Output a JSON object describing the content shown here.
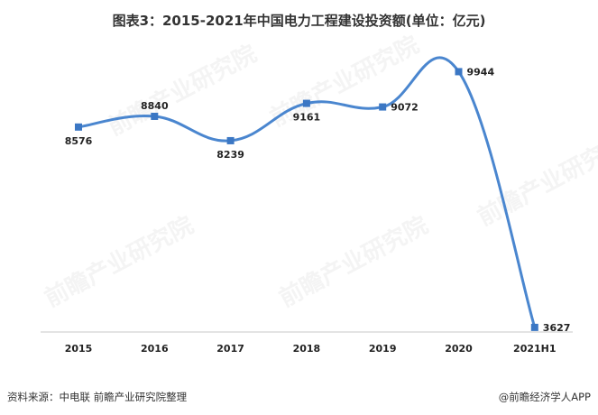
{
  "title": "图表3：2015-2021年中国电力工程建设投资额(单位：亿元)",
  "source": "资料来源：中电联 前瞻产业研究院整理",
  "brand": "@前瞻经济学人APP",
  "watermark": "前瞻产业研究院",
  "chart_data": {
    "type": "line",
    "categories": [
      "2015",
      "2016",
      "2017",
      "2018",
      "2019",
      "2020",
      "2021H1"
    ],
    "series": [
      {
        "values": [
          8576,
          8840,
          8239,
          9161,
          9072,
          9944,
          3627
        ]
      }
    ],
    "value_labels": [
      "8576",
      "8840",
      "8239",
      "9161",
      "9072",
      "9944",
      "3627"
    ],
    "label_positions": [
      "below",
      "above",
      "below",
      "below",
      "right",
      "right",
      "right"
    ],
    "ylim": [
      2800,
      10600
    ],
    "smooth": true,
    "grid": false,
    "legend": "none",
    "colors": {
      "line": "#4a86cf",
      "marker": "#3b77c4",
      "axis": "#c8c8c8",
      "text": "#222222"
    }
  }
}
